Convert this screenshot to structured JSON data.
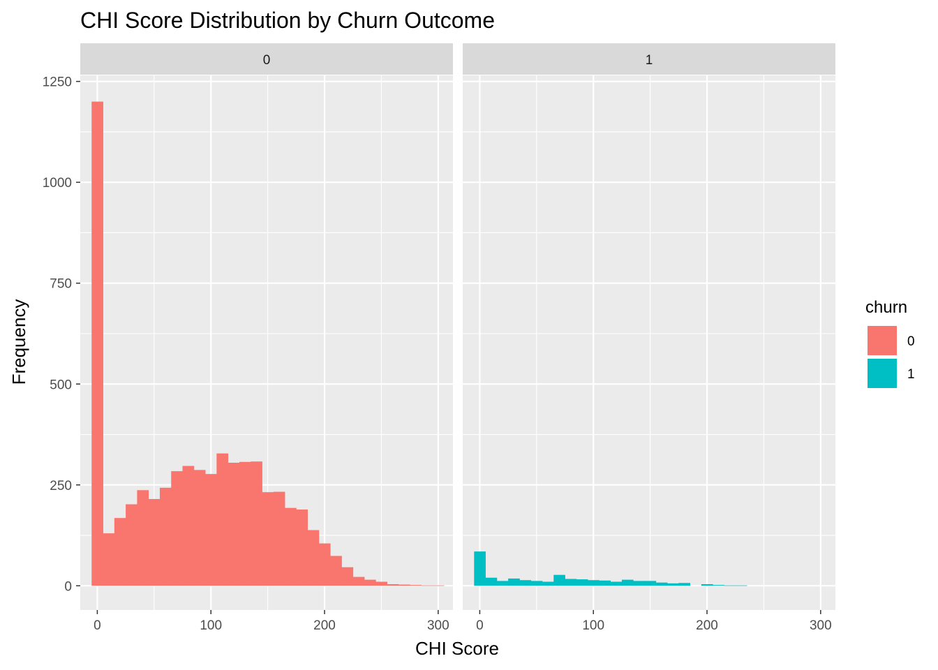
{
  "chart_data": {
    "type": "bar",
    "title": "CHI Score Distribution by Churn Outcome",
    "xlabel": "CHI Score",
    "ylabel": "Frequency",
    "xlim": [
      -15,
      313
    ],
    "ylim": [
      -60,
      1265
    ],
    "xticks": [
      0,
      100,
      200,
      300
    ],
    "xtick_labels": [
      "0",
      "100",
      "200",
      "300"
    ],
    "yticks": [
      0,
      250,
      500,
      750,
      1000,
      1250
    ],
    "ytick_labels": [
      "0",
      "250",
      "500",
      "750",
      "1000",
      "1250"
    ],
    "bin_width": 10,
    "grid": true,
    "legend": {
      "title": "churn",
      "placement": "right",
      "entries": [
        {
          "label": "0",
          "color": "#F8766D"
        },
        {
          "label": "1",
          "color": "#00BFC4"
        }
      ]
    },
    "panels": [
      {
        "strip": "0",
        "series_key": "0",
        "color": "#F8766D",
        "bin_centers": [
          0,
          10,
          20,
          30,
          40,
          50,
          60,
          70,
          80,
          90,
          100,
          110,
          120,
          130,
          140,
          150,
          160,
          170,
          180,
          190,
          200,
          210,
          220,
          230,
          240,
          250,
          260,
          270,
          280,
          290,
          300
        ],
        "counts": [
          1200,
          130,
          168,
          202,
          237,
          215,
          243,
          284,
          297,
          287,
          277,
          328,
          305,
          307,
          308,
          232,
          233,
          193,
          189,
          138,
          105,
          74,
          46,
          22,
          15,
          10,
          4,
          3,
          2,
          1,
          1
        ]
      },
      {
        "strip": "1",
        "series_key": "1",
        "color": "#00BFC4",
        "bin_centers": [
          0,
          10,
          20,
          30,
          40,
          50,
          60,
          70,
          80,
          90,
          100,
          110,
          120,
          130,
          140,
          150,
          160,
          170,
          180,
          190,
          200,
          210,
          220,
          230
        ],
        "counts": [
          85,
          20,
          12,
          18,
          14,
          12,
          10,
          27,
          17,
          16,
          14,
          13,
          10,
          15,
          12,
          12,
          8,
          6,
          7,
          0,
          4,
          2,
          1,
          1
        ]
      }
    ]
  }
}
